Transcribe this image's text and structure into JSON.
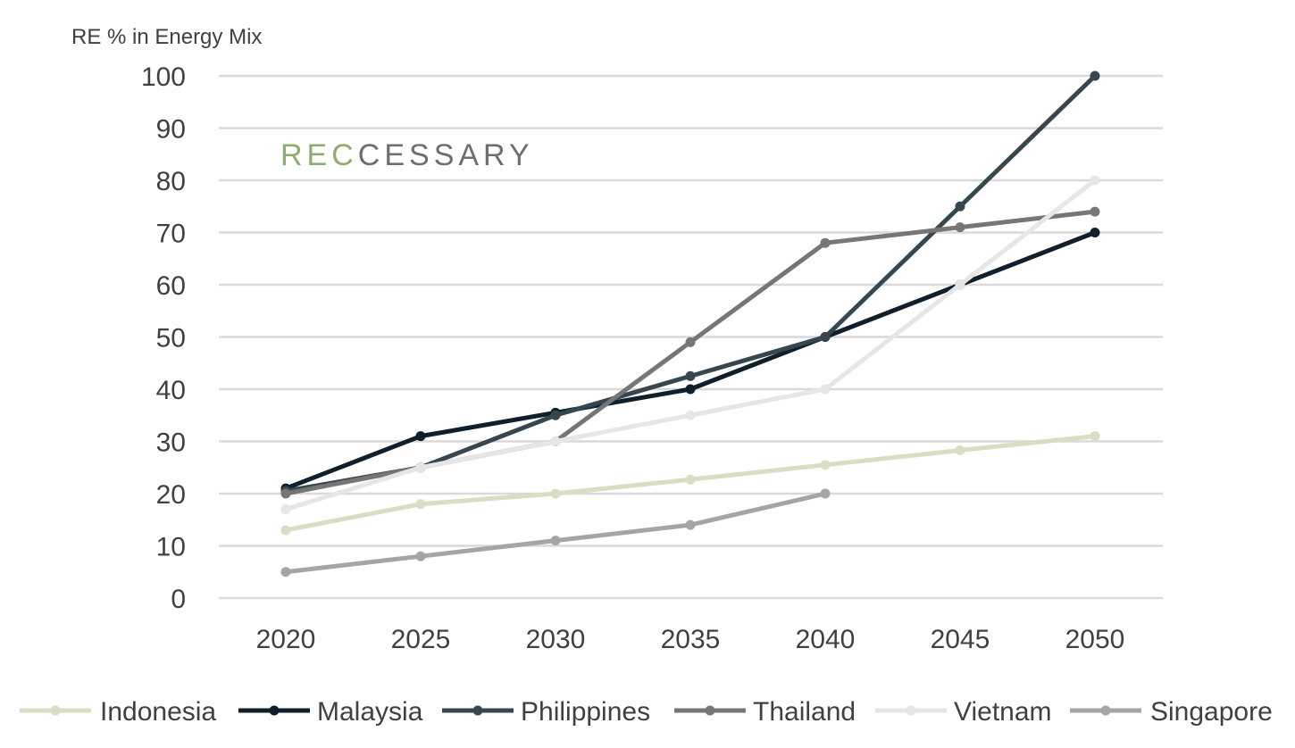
{
  "chart_data": {
    "type": "line",
    "ylabel": "RE % in Energy Mix",
    "x": [
      2020,
      2025,
      2030,
      2035,
      2040,
      2045,
      2050
    ],
    "ylim": [
      0,
      100
    ],
    "yticks": [
      0,
      10,
      20,
      30,
      40,
      50,
      60,
      70,
      80,
      90,
      100
    ],
    "grid": true,
    "legend_position": "bottom",
    "series": [
      {
        "name": "Indonesia",
        "color": "#dcdbc4",
        "values": [
          13,
          18,
          20,
          22.7,
          25.5,
          28.3,
          31
        ]
      },
      {
        "name": "Malaysia",
        "color": "#0f1f2c",
        "values": [
          21,
          31,
          35.5,
          40,
          50,
          60,
          70
        ]
      },
      {
        "name": "Philippines",
        "color": "#37474f",
        "values": [
          20.5,
          25,
          35,
          42.5,
          50,
          75,
          100
        ]
      },
      {
        "name": "Thailand",
        "color": "#767676",
        "values": [
          20,
          25,
          30,
          49,
          68,
          71,
          74
        ]
      },
      {
        "name": "Vietnam",
        "color": "#e6e6e6",
        "values": [
          17,
          25,
          30,
          35,
          40,
          60,
          80
        ]
      },
      {
        "name": "Singapore",
        "color": "#a5a5a5",
        "values": [
          5,
          8,
          11,
          14,
          20,
          null,
          null
        ]
      }
    ]
  },
  "watermark": {
    "part1": "REC",
    "part2": "CESSARY",
    "color1": "#8cad6e",
    "color2": "#6e6e6e"
  }
}
